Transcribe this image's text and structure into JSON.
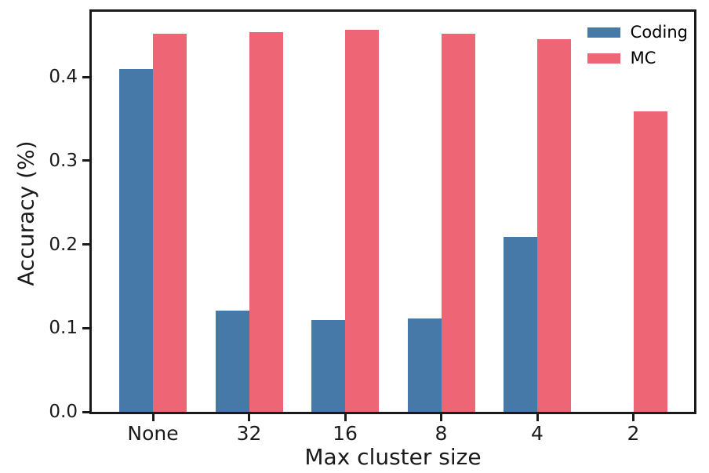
{
  "chart_data": {
    "type": "bar",
    "title": "",
    "xlabel": "Max cluster size",
    "ylabel": "Accuracy (%)",
    "categories": [
      "None",
      "32",
      "16",
      "8",
      "4",
      "2"
    ],
    "series": [
      {
        "name": "Coding",
        "color": "#4678a8",
        "values": [
          0.41,
          0.121,
          0.11,
          0.112,
          0.209,
          0
        ]
      },
      {
        "name": "MC",
        "color": "#ee6576",
        "values": [
          0.452,
          0.454,
          0.456,
          0.452,
          0.445,
          0.359
        ]
      }
    ],
    "y_ticks": [
      0.0,
      0.1,
      0.2,
      0.3,
      0.4
    ],
    "y_tick_labels": [
      "0.0",
      "0.1",
      "0.2",
      "0.3",
      "0.4"
    ],
    "ylim": [
      0,
      0.478
    ],
    "grid": false,
    "legend_position": "upper right",
    "legend_entries": [
      "Coding",
      "MC"
    ]
  }
}
